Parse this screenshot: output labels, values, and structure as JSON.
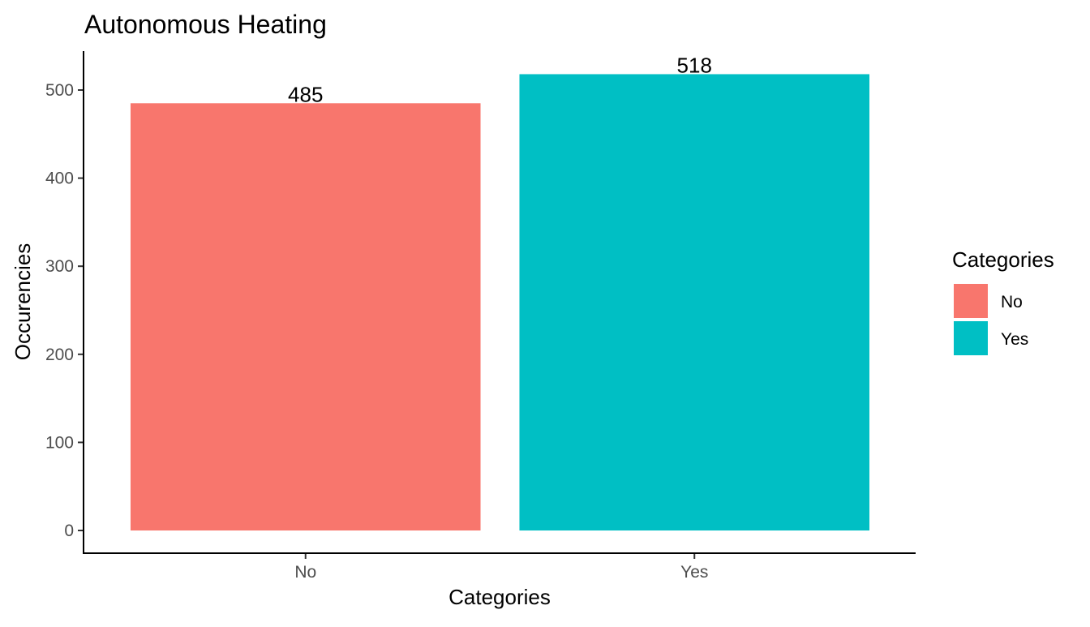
{
  "chart_data": {
    "type": "bar",
    "title": "Autonomous Heating",
    "xlabel": "Categories",
    "ylabel": "Occurencies",
    "categories": [
      "No",
      "Yes"
    ],
    "values": [
      485,
      518
    ],
    "data_labels": [
      "485",
      "518"
    ],
    "colors": [
      "#F8766D",
      "#00BFC4"
    ],
    "ylim": [
      0,
      540
    ],
    "yticks": [
      0,
      100,
      200,
      300,
      400,
      500
    ],
    "ytick_labels": [
      "0",
      "100",
      "200",
      "300",
      "400",
      "500"
    ],
    "grid": false,
    "legend": {
      "title": "Categories",
      "position": "right",
      "items": [
        {
          "label": "No",
          "color": "#F8766D"
        },
        {
          "label": "Yes",
          "color": "#00BFC4"
        }
      ]
    }
  }
}
